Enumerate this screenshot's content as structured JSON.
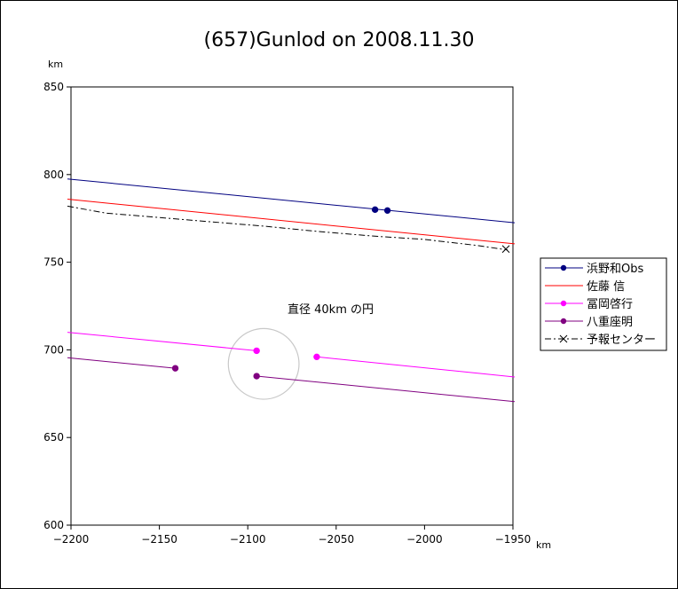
{
  "chart_data": {
    "type": "line",
    "title": "(657)Gunlod on 2008.11.30",
    "xlabel": "km",
    "ylabel": "km",
    "xlim": [
      -2200,
      -1950
    ],
    "ylim": [
      600,
      850
    ],
    "xticks": [
      -2200,
      -2150,
      -2100,
      -2050,
      -2000,
      -1950
    ],
    "yticks": [
      600,
      650,
      700,
      750,
      800,
      850
    ],
    "xtick_labels": [
      "−2200",
      "−2150",
      "−2100",
      "−2050",
      "−2000",
      "−1950"
    ],
    "ytick_labels": [
      "600",
      "650",
      "700",
      "750",
      "800",
      "850"
    ],
    "grid": false,
    "legend_position": "right",
    "annotation": "直径 40km の円",
    "circle": {
      "center": [
        -2091,
        692
      ],
      "diameter_km": 40,
      "color": "#c8c8c8"
    },
    "series": [
      {
        "name": "浜野和Obs",
        "color": "#000080",
        "style": "solid",
        "marker": "circle",
        "line": [
          [
            -2202,
            797.5
          ],
          [
            -1949,
            772.5
          ]
        ],
        "points": [
          [
            -2028,
            780
          ],
          [
            -2021,
            779.5
          ]
        ]
      },
      {
        "name": "佐藤 信",
        "color": "#ff0000",
        "style": "solid",
        "marker": "none",
        "line": [
          [
            -2202,
            786
          ],
          [
            -1949,
            760.5
          ]
        ],
        "points": []
      },
      {
        "name": "冨岡啓行",
        "color": "#ff00ff",
        "style": "solid",
        "marker": "circle",
        "segments": [
          [
            [
              -2202,
              710
            ],
            [
              -2095,
              699.5
            ]
          ],
          [
            [
              -2061,
              696
            ],
            [
              -1949,
              684.5
            ]
          ]
        ],
        "points": [
          [
            -2095,
            699.5
          ],
          [
            -2061,
            696
          ]
        ]
      },
      {
        "name": "八重座明",
        "color": "#800080",
        "style": "solid",
        "marker": "circle",
        "segments": [
          [
            [
              -2202,
              695.5
            ],
            [
              -2141,
              689.5
            ]
          ],
          [
            [
              -2095,
              685
            ],
            [
              -1949,
              670.5
            ]
          ]
        ],
        "points": [
          [
            -2141,
            689.5
          ],
          [
            -2095,
            685
          ]
        ]
      },
      {
        "name": "予報センター",
        "color": "#000000",
        "style": "dashdot",
        "marker": "x",
        "line": [
          [
            -2202,
            782
          ],
          [
            -2180,
            778
          ],
          [
            -2150,
            775.5
          ],
          [
            -2120,
            773
          ],
          [
            -2090,
            770.5
          ],
          [
            -2060,
            767.5
          ],
          [
            -2030,
            765
          ],
          [
            -2000,
            763
          ],
          [
            -1970,
            759.5
          ],
          [
            -1953,
            757
          ]
        ],
        "points": [
          [
            -1954,
            757.5
          ]
        ]
      }
    ]
  }
}
